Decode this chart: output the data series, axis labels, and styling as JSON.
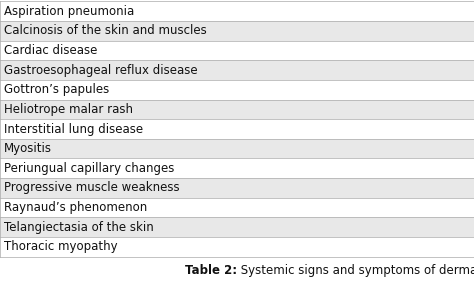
{
  "rows": [
    "Aspiration pneumonia",
    "Calcinosis of the skin and muscles",
    "Cardiac disease",
    "Gastroesophageal reflux disease",
    "Gottron’s papules",
    "Heliotrope malar rash",
    "Interstitial lung disease",
    "Myositis",
    "Periungual capillary changes",
    "Progressive muscle weakness",
    "Raynaud’s phenomenon",
    "Telangiectasia of the skin",
    "Thoracic myopathy"
  ],
  "caption_bold": "Table 2:",
  "caption_normal": " Systemic signs and symptoms of dermatomyositis.",
  "bg_color": "#ffffff",
  "row_bg_even": "#ffffff",
  "row_bg_odd": "#e8e8e8",
  "border_color": "#aaaaaa",
  "text_color": "#111111",
  "caption_color": "#111111",
  "font_size": 8.5,
  "caption_font_size": 8.5
}
